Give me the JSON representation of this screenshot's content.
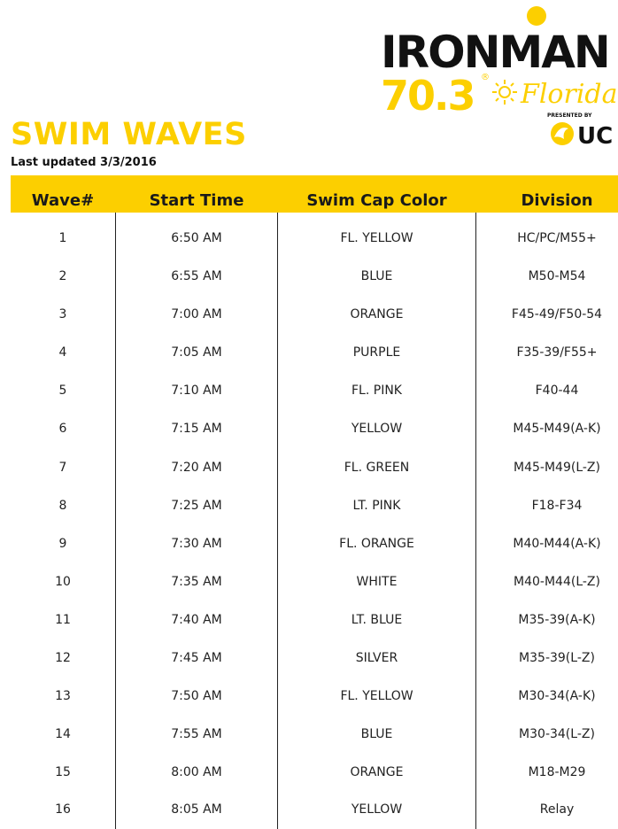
{
  "logo": {
    "brand": "IRONMAN",
    "distance": "70.3",
    "location": "Florida",
    "presented_by": "PRESENTED BY",
    "sponsor": "UC",
    "colors": {
      "yellow": "#fccf00",
      "black": "#111111"
    }
  },
  "page": {
    "title": "SWIM WAVES",
    "updated": "Last updated 3/3/2016"
  },
  "table": {
    "headers": [
      "Wave#",
      "Start Time",
      "Swim Cap Color",
      "Division"
    ],
    "rows": [
      [
        "1",
        "6:50 AM",
        "FL. YELLOW",
        "HC/PC/M55+"
      ],
      [
        "2",
        "6:55 AM",
        "BLUE",
        "M50-M54"
      ],
      [
        "3",
        "7:00 AM",
        "ORANGE",
        "F45-49/F50-54"
      ],
      [
        "4",
        "7:05 AM",
        "PURPLE",
        "F35-39/F55+"
      ],
      [
        "5",
        "7:10 AM",
        "FL. PINK",
        "F40-44"
      ],
      [
        "6",
        "7:15 AM",
        "YELLOW",
        "M45-M49(A-K)"
      ],
      [
        "7",
        "7:20 AM",
        "FL. GREEN",
        "M45-M49(L-Z)"
      ],
      [
        "8",
        "7:25 AM",
        "LT. PINK",
        "F18-F34"
      ],
      [
        "9",
        "7:30 AM",
        "FL. ORANGE",
        "M40-M44(A-K)"
      ],
      [
        "10",
        "7:35 AM",
        "WHITE",
        "M40-M44(L-Z)"
      ],
      [
        "11",
        "7:40 AM",
        "LT. BLUE",
        "M35-39(A-K)"
      ],
      [
        "12",
        "7:45 AM",
        "SILVER",
        "M35-39(L-Z)"
      ],
      [
        "13",
        "7:50 AM",
        "FL. YELLOW",
        "M30-34(A-K)"
      ],
      [
        "14",
        "7:55 AM",
        "BLUE",
        "M30-34(L-Z)"
      ],
      [
        "15",
        "8:00 AM",
        "ORANGE",
        "M18-M29"
      ],
      [
        "16",
        "8:05 AM",
        "YELLOW",
        "Relay"
      ]
    ]
  }
}
